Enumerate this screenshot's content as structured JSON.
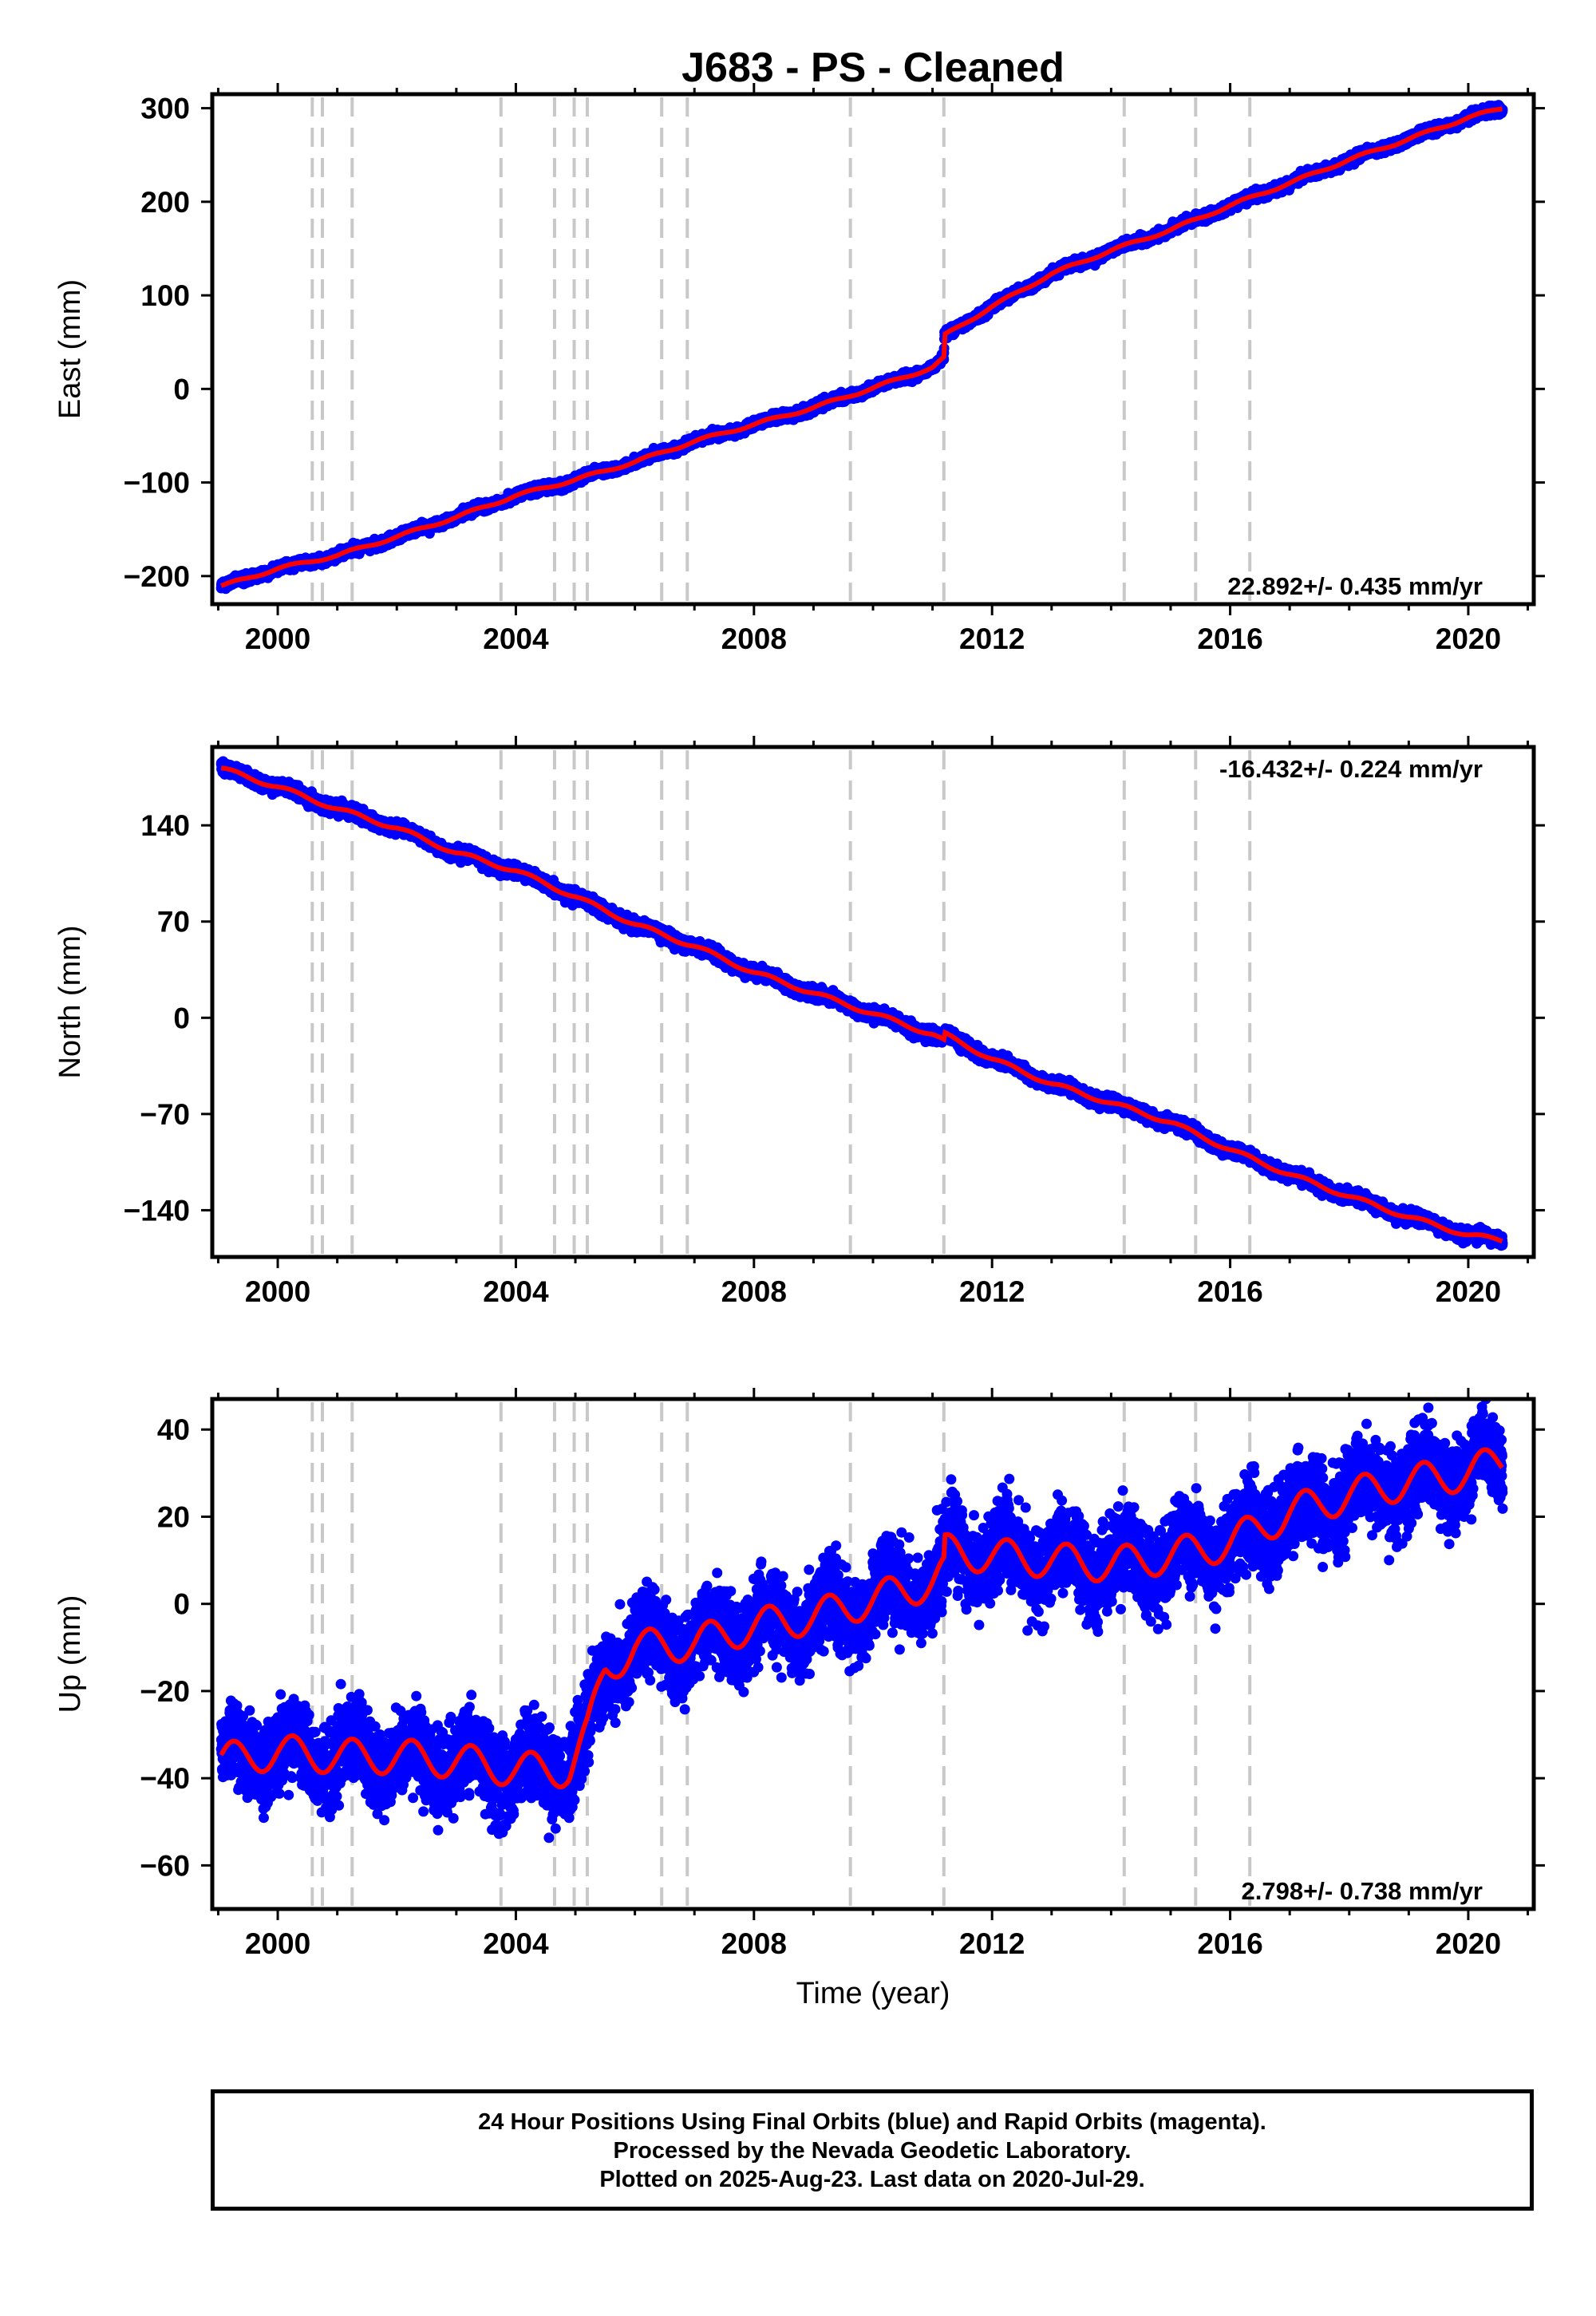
{
  "chart_data": [
    {
      "type": "scatter",
      "title": "J683  - PS - Cleaned",
      "ylabel": "East (mm)",
      "xlabel": "",
      "xlim": [
        1998.9,
        2021.1
      ],
      "ylim": [
        -230,
        315
      ],
      "xticks": [
        2000,
        2004,
        2008,
        2012,
        2016,
        2020
      ],
      "xtick_labels": [
        "2000",
        "2004",
        "2008",
        "2012",
        "2016",
        "2020"
      ],
      "yticks": [
        300,
        200,
        100,
        0,
        -100,
        -200
      ],
      "ytick_labels": [
        "300",
        "200",
        "100",
        "0",
        "−100",
        "−200"
      ],
      "rate_label": "22.892+/- 0.435 mm/yr",
      "rate_position": "bottom-right",
      "series": [
        {
          "name": "Final Orbits",
          "kind": "points",
          "color": "#0000ff",
          "values_note": "daily positions"
        },
        {
          "name": "Model fit",
          "kind": "line",
          "color": "#ff0000",
          "x": [
            1999.0,
            2000.0,
            2001.0,
            2002.0,
            2003.0,
            2004.0,
            2005.0,
            2006.0,
            2007.0,
            2008.0,
            2009.0,
            2010.0,
            2011.0,
            2011.19,
            2011.2,
            2012.0,
            2013.0,
            2014.0,
            2015.0,
            2016.0,
            2017.0,
            2018.0,
            2019.0,
            2020.0,
            2020.58
          ],
          "y": [
            -212,
            -192,
            -178,
            -158,
            -137,
            -114,
            -97,
            -78,
            -56,
            -38,
            -20,
            1,
            23,
            33,
            57,
            88,
            123,
            148,
            170,
            196,
            220,
            245,
            267,
            290,
            300
          ]
        }
      ]
    },
    {
      "type": "scatter",
      "title": "",
      "ylabel": "North (mm)",
      "xlabel": "",
      "xlim": [
        1998.9,
        2021.1
      ],
      "ylim": [
        -174,
        197
      ],
      "xticks": [
        2000,
        2004,
        2008,
        2012,
        2016,
        2020
      ],
      "xtick_labels": [
        "2000",
        "2004",
        "2008",
        "2012",
        "2016",
        "2020"
      ],
      "yticks": [
        140,
        70,
        0,
        -70,
        -140
      ],
      "ytick_labels": [
        "140",
        "70",
        "0",
        "−70",
        "−140"
      ],
      "rate_label": "-16.432+/- 0.224 mm/yr",
      "rate_position": "top-right",
      "series": [
        {
          "name": "Final Orbits",
          "kind": "points",
          "color": "#0000ff",
          "values_note": "daily positions"
        },
        {
          "name": "Model fit",
          "kind": "line",
          "color": "#ff0000",
          "x": [
            1999.0,
            2000.0,
            2001.0,
            2002.0,
            2003.0,
            2004.0,
            2005.0,
            2006.0,
            2007.0,
            2008.0,
            2009.0,
            2010.0,
            2011.0,
            2011.19,
            2011.2,
            2012.0,
            2013.0,
            2014.0,
            2015.0,
            2016.0,
            2017.0,
            2018.0,
            2019.0,
            2020.0,
            2020.58
          ],
          "y": [
            182,
            168,
            152,
            138,
            120,
            107,
            88,
            68,
            52,
            33,
            18,
            3,
            -12,
            -17,
            -12,
            -30,
            -48,
            -62,
            -76,
            -96,
            -114,
            -130,
            -145,
            -158,
            -162
          ]
        }
      ]
    },
    {
      "type": "scatter",
      "title": "",
      "ylabel": "Up (mm)",
      "xlabel": "Time (year)",
      "xlim": [
        1998.9,
        2021.1
      ],
      "ylim": [
        -70,
        47
      ],
      "xticks": [
        2000,
        2004,
        2008,
        2012,
        2016,
        2020
      ],
      "xtick_labels": [
        "2000",
        "2004",
        "2008",
        "2012",
        "2016",
        "2020"
      ],
      "yticks": [
        40,
        20,
        0,
        -20,
        -40,
        -60
      ],
      "ytick_labels": [
        "40",
        "20",
        "0",
        "−20",
        "−40",
        "−60"
      ],
      "rate_label": "2.798+/- 0.738 mm/yr",
      "rate_position": "bottom-right",
      "series": [
        {
          "name": "Final Orbits",
          "kind": "points",
          "color": "#0000ff",
          "values_note": "daily positions"
        },
        {
          "name": "Model fit",
          "kind": "line",
          "color": "#ff0000",
          "x": [
            1999.0,
            2000.0,
            2001.0,
            2002.0,
            2003.0,
            2004.0,
            2004.9,
            2005.2,
            2005.5,
            2006.0,
            2007.0,
            2008.0,
            2009.0,
            2010.0,
            2011.0,
            2011.19,
            2011.2,
            2012.0,
            2013.0,
            2014.0,
            2015.0,
            2016.0,
            2017.0,
            2018.0,
            2019.0,
            2020.0,
            2020.58
          ],
          "y": [
            -36,
            -34,
            -35,
            -35,
            -36,
            -38,
            -38,
            -30,
            -15,
            -10,
            -9,
            -5,
            -3,
            1,
            5,
            7,
            12,
            11,
            10,
            9,
            11,
            14,
            21,
            25,
            28,
            30,
            33
          ]
        }
      ]
    }
  ],
  "event_lines_x": [
    2000.58,
    2000.75,
    2001.25,
    2003.75,
    2004.65,
    2004.98,
    2005.2,
    2006.45,
    2006.88,
    2009.62,
    2011.19,
    2014.22,
    2015.42,
    2016.33
  ],
  "colors": {
    "points": "#0000ff",
    "fit": "#ff0000",
    "events": "#c8c8c8",
    "frame": "#000000"
  },
  "caption": {
    "line1": "24 Hour Positions Using Final Orbits (blue) and Rapid Orbits (magenta).",
    "line2": "Processed by the Nevada Geodetic Laboratory.",
    "line3": "Plotted on 2025-Aug-23. Last data on 2020-Jul-29."
  }
}
